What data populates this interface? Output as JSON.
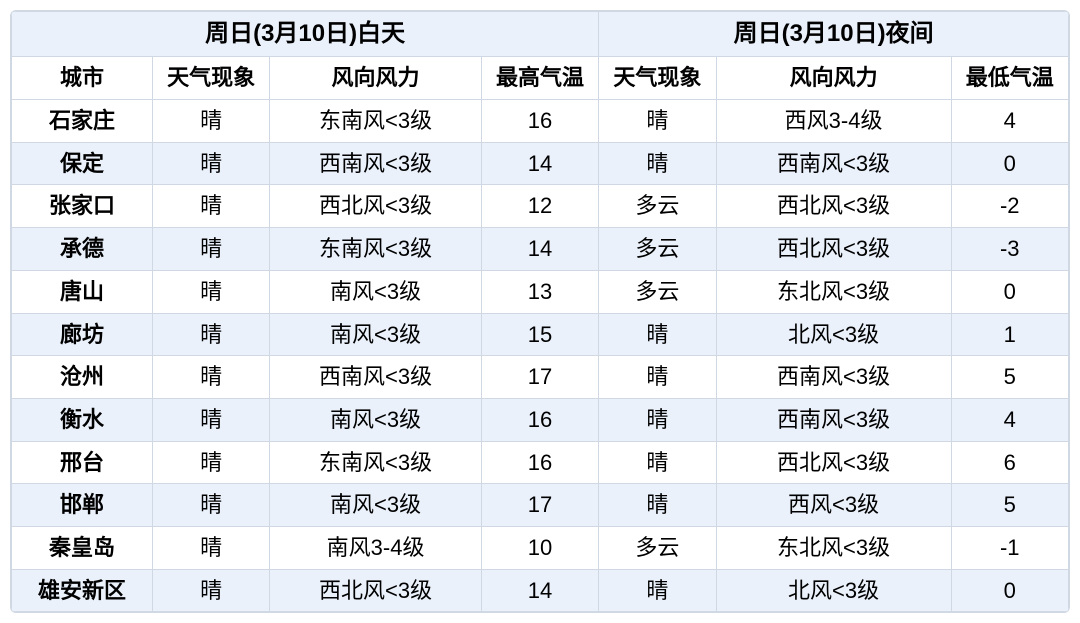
{
  "header": {
    "day_title": "周日(3月10日)白天",
    "night_title": "周日(3月10日)夜间",
    "columns": {
      "city": "城市",
      "day_weather": "天气现象",
      "day_wind": "风向风力",
      "day_high": "最高气温",
      "night_weather": "天气现象",
      "night_wind": "风向风力",
      "night_low": "最低气温"
    }
  },
  "style": {
    "band_bg": "#eaf1fb",
    "border_color": "#cfd8e3",
    "text_color": "#000000",
    "header_fontsize": 24,
    "cell_fontsize": 22,
    "column_widths_pct": [
      12,
      10,
      18,
      10,
      10,
      20,
      10
    ],
    "alt_rows_start_color": "white"
  },
  "rows": [
    {
      "city": "石家庄",
      "day_weather": "晴",
      "day_wind": "东南风<3级",
      "day_high": "16",
      "night_weather": "晴",
      "night_wind": "西风3-4级",
      "night_low": "4"
    },
    {
      "city": "保定",
      "day_weather": "晴",
      "day_wind": "西南风<3级",
      "day_high": "14",
      "night_weather": "晴",
      "night_wind": "西南风<3级",
      "night_low": "0"
    },
    {
      "city": "张家口",
      "day_weather": "晴",
      "day_wind": "西北风<3级",
      "day_high": "12",
      "night_weather": "多云",
      "night_wind": "西北风<3级",
      "night_low": "-2"
    },
    {
      "city": "承德",
      "day_weather": "晴",
      "day_wind": "东南风<3级",
      "day_high": "14",
      "night_weather": "多云",
      "night_wind": "西北风<3级",
      "night_low": "-3"
    },
    {
      "city": "唐山",
      "day_weather": "晴",
      "day_wind": "南风<3级",
      "day_high": "13",
      "night_weather": "多云",
      "night_wind": "东北风<3级",
      "night_low": "0"
    },
    {
      "city": "廊坊",
      "day_weather": "晴",
      "day_wind": "南风<3级",
      "day_high": "15",
      "night_weather": "晴",
      "night_wind": "北风<3级",
      "night_low": "1"
    },
    {
      "city": "沧州",
      "day_weather": "晴",
      "day_wind": "西南风<3级",
      "day_high": "17",
      "night_weather": "晴",
      "night_wind": "西南风<3级",
      "night_low": "5"
    },
    {
      "city": "衡水",
      "day_weather": "晴",
      "day_wind": "南风<3级",
      "day_high": "16",
      "night_weather": "晴",
      "night_wind": "西南风<3级",
      "night_low": "4"
    },
    {
      "city": "邢台",
      "day_weather": "晴",
      "day_wind": "东南风<3级",
      "day_high": "16",
      "night_weather": "晴",
      "night_wind": "西北风<3级",
      "night_low": "6"
    },
    {
      "city": "邯郸",
      "day_weather": "晴",
      "day_wind": "南风<3级",
      "day_high": "17",
      "night_weather": "晴",
      "night_wind": "西风<3级",
      "night_low": "5"
    },
    {
      "city": "秦皇岛",
      "day_weather": "晴",
      "day_wind": "南风3-4级",
      "day_high": "10",
      "night_weather": "多云",
      "night_wind": "东北风<3级",
      "night_low": "-1"
    },
    {
      "city": "雄安新区",
      "day_weather": "晴",
      "day_wind": "西北风<3级",
      "day_high": "14",
      "night_weather": "晴",
      "night_wind": "北风<3级",
      "night_low": "0"
    }
  ]
}
